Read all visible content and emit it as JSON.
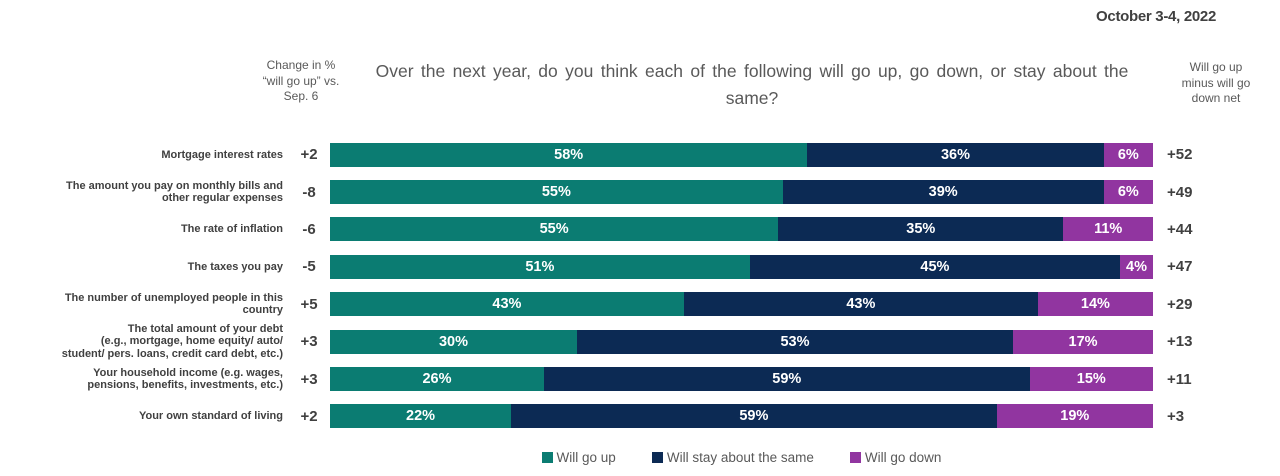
{
  "date": "October 3-4, 2022",
  "left_header": "Change in %\n“will go up” vs.\nSep. 6",
  "right_header": "Will go up\nminus will go\ndown net",
  "chart_data": {
    "type": "bar",
    "orientation": "horizontal",
    "stacked": true,
    "title": "Over the next year, do you think each of the following will go up, go down, or stay about the same?",
    "value_suffix": "%",
    "legend_position": "bottom",
    "categories": [
      "Mortgage interest rates",
      "The amount you pay on monthly bills and\nother regular expenses",
      "The rate of inflation",
      "The taxes you pay",
      "The number of unemployed people in this\ncountry",
      "The total amount of your debt\n(e.g., mortgage, home equity/ auto/\nstudent/ pers. loans, credit card debt, etc.)",
      "Your household income (e.g. wages,\npensions, benefits, investments, etc.)",
      "Your own standard of living"
    ],
    "series": [
      {
        "name": "Will go up",
        "color": "#0b7c72",
        "values": [
          58,
          55,
          55,
          51,
          43,
          30,
          26,
          22
        ]
      },
      {
        "name": "Will stay about the same",
        "color": "#0c2a54",
        "values": [
          36,
          39,
          35,
          45,
          43,
          53,
          59,
          59
        ]
      },
      {
        "name": "Will go down",
        "color": "#9135a0",
        "values": [
          6,
          6,
          11,
          4,
          14,
          17,
          15,
          19
        ]
      }
    ],
    "annotations": {
      "change_vs_sep6": [
        "+2",
        "-8",
        "-6",
        "-5",
        "+5",
        "+3",
        "+3",
        "+2"
      ],
      "net_up_minus_down": [
        "+52",
        "+49",
        "+44",
        "+47",
        "+29",
        "+13",
        "+11",
        "+3"
      ]
    }
  }
}
